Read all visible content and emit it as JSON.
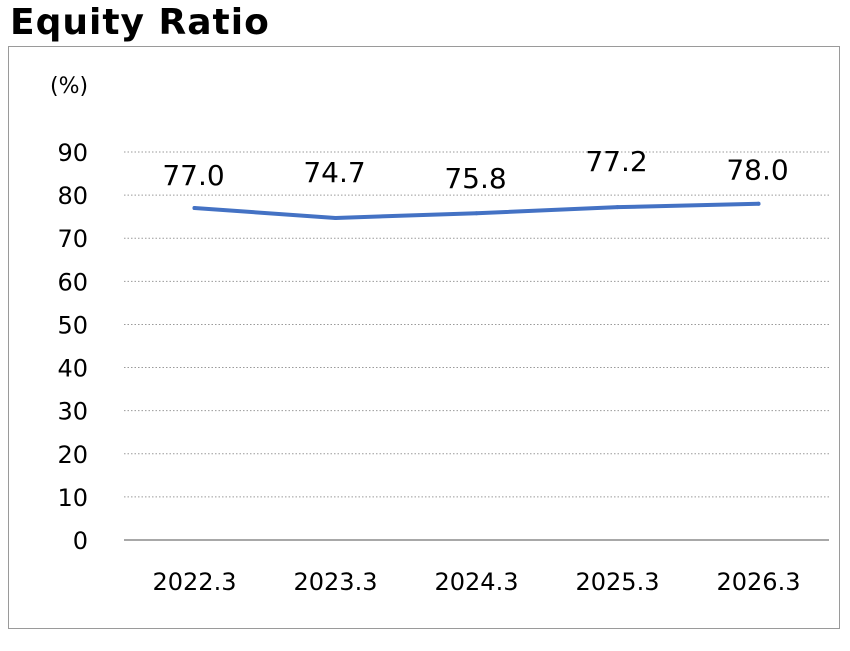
{
  "page": {
    "title": "Equity Ratio"
  },
  "chart_data": {
    "type": "line",
    "title": "Equity Ratio",
    "unit_label": "(%)",
    "categories": [
      "2022.3",
      "2023.3",
      "2024.3",
      "2025.3",
      "2026.3"
    ],
    "series": [
      {
        "values": [
          77.0,
          74.7,
          75.8,
          77.2,
          78.0
        ],
        "color": "#4472c4"
      }
    ],
    "data_labels": [
      "77.0",
      "74.7",
      "75.8",
      "77.2",
      "78.0"
    ],
    "y_ticks": [
      0,
      10,
      20,
      30,
      40,
      50,
      60,
      70,
      80,
      90
    ],
    "ylim": [
      0,
      90
    ],
    "grid": true,
    "grid_style": "dotted",
    "legend": "none"
  }
}
